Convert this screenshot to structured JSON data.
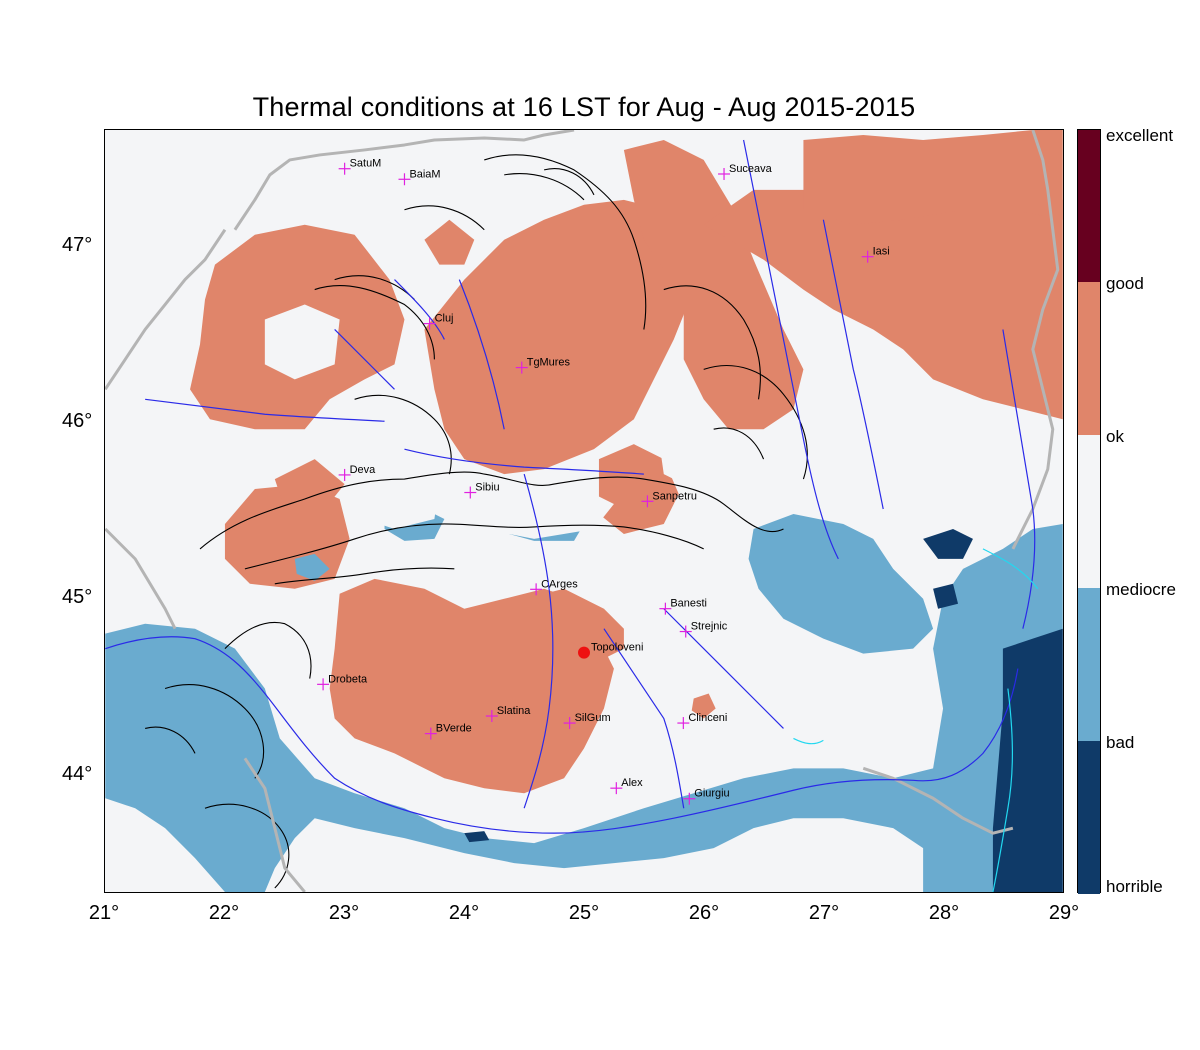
{
  "title": "Thermal conditions at 16 LST for Aug - Aug  2015-2015",
  "colors": {
    "excellent": "#67001f",
    "good": "#e0856a",
    "ok": "#f4f5f7",
    "mediocre": "#6aabcf",
    "bad": "#0f3a68",
    "rivers": "#2a2ae8",
    "borders": "#b4b4b4",
    "coast": "#22d8f0",
    "contours": "#000000",
    "city_marker": "#e020e0",
    "highlight": "#ee1111"
  },
  "map": {
    "x_ticks": [
      "21°",
      "22°",
      "23°",
      "24°",
      "25°",
      "26°",
      "27°",
      "28°",
      "29°"
    ],
    "y_ticks": [
      "47°",
      "46°",
      "45°",
      "44°"
    ],
    "lon_range": [
      21,
      29
    ],
    "lat_range": [
      43.33,
      47.66
    ],
    "cities": [
      {
        "name": "SatuM",
        "lon": 23.0,
        "lat": 47.44
      },
      {
        "name": "BaiaM",
        "lon": 23.5,
        "lat": 47.38
      },
      {
        "name": "Suceava",
        "lon": 26.17,
        "lat": 47.41
      },
      {
        "name": "Iasi",
        "lon": 27.37,
        "lat": 46.94
      },
      {
        "name": "Cluj",
        "lon": 23.71,
        "lat": 46.56
      },
      {
        "name": "TgMures",
        "lon": 24.48,
        "lat": 46.31
      },
      {
        "name": "Deva",
        "lon": 23.0,
        "lat": 45.7
      },
      {
        "name": "Sibiu",
        "lon": 24.05,
        "lat": 45.6
      },
      {
        "name": "Sanpetru",
        "lon": 25.53,
        "lat": 45.55
      },
      {
        "name": "CArges",
        "lon": 24.6,
        "lat": 45.05
      },
      {
        "name": "Banesti",
        "lon": 25.68,
        "lat": 44.94
      },
      {
        "name": "Strejnic",
        "lon": 25.85,
        "lat": 44.81
      },
      {
        "name": "Drobeta",
        "lon": 22.82,
        "lat": 44.51
      },
      {
        "name": "Slatina",
        "lon": 24.23,
        "lat": 44.33
      },
      {
        "name": "SilGum",
        "lon": 24.88,
        "lat": 44.29
      },
      {
        "name": "Clinceni",
        "lon": 25.83,
        "lat": 44.29
      },
      {
        "name": "BVerde",
        "lon": 23.72,
        "lat": 44.23
      },
      {
        "name": "Alex",
        "lon": 25.27,
        "lat": 43.92
      },
      {
        "name": "Giurgiu",
        "lon": 25.88,
        "lat": 43.86
      }
    ],
    "highlight_city": {
      "name": "Topoloveni",
      "lon": 25.0,
      "lat": 44.69
    }
  },
  "colorbar": {
    "levels": [
      {
        "label": "excellent",
        "color": "#67001f"
      },
      {
        "label": "good",
        "color": "#e0856a"
      },
      {
        "label": "ok",
        "color": "#f4f5f7"
      },
      {
        "label": "mediocre",
        "color": "#6aabcf"
      },
      {
        "label": "bad",
        "color": "#6aabcf"
      },
      {
        "label": "horrible",
        "color": "#0f3a68"
      }
    ]
  }
}
